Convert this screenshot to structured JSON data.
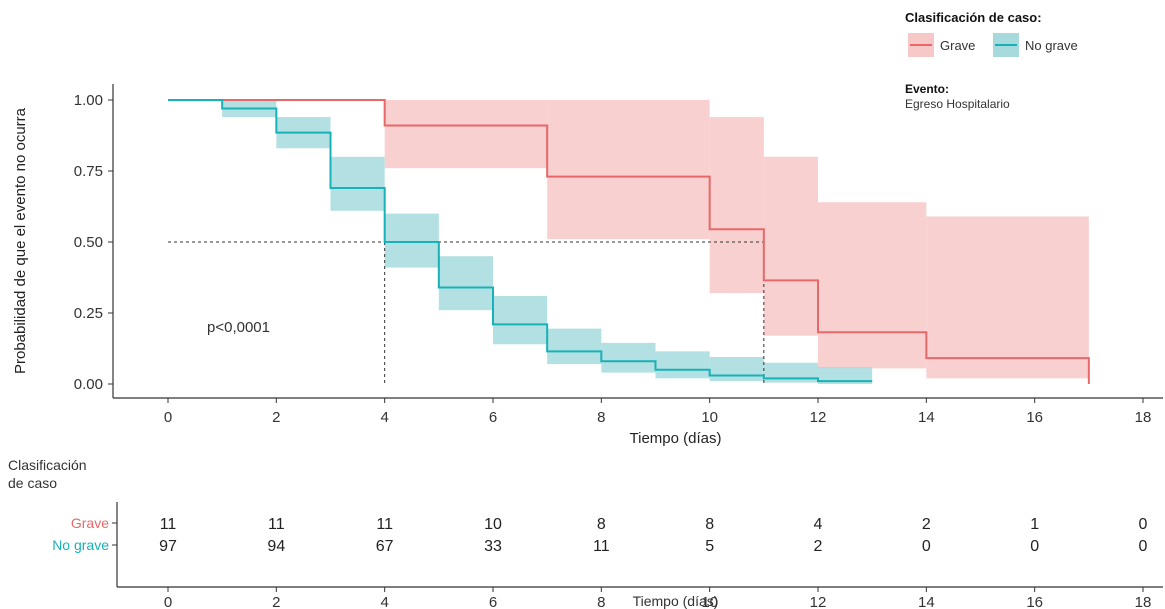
{
  "chart_data": {
    "type": "line",
    "subtype": "kaplan-meier",
    "title": "",
    "xlabel": "Tiempo (días)",
    "ylabel": "Probabilidad de que el evento no ocurra",
    "xlim": [
      0,
      18
    ],
    "ylim": [
      0,
      1
    ],
    "x_ticks": [
      "0",
      "2",
      "4",
      "6",
      "8",
      "10",
      "12",
      "14",
      "16",
      "18"
    ],
    "y_ticks": [
      "0.00",
      "0.25",
      "0.50",
      "0.75",
      "1.00"
    ],
    "grid": false,
    "pvalue_label": "p<0,0001",
    "median_line": {
      "y": 0.5,
      "medians": [
        4,
        11
      ]
    },
    "legend": {
      "title": "Clasificación de caso:",
      "position": "top-right",
      "items": [
        {
          "label": "Grave",
          "color": "#e8686a",
          "band_color": "#f7c8c8"
        },
        {
          "label": "No grave",
          "color": "#17b2b8",
          "band_color": "#a6dadd"
        }
      ]
    },
    "event_note": {
      "title": "Evento:",
      "value": "Egreso Hospitalario"
    },
    "series": [
      {
        "name": "Grave",
        "color": "#e8686a",
        "band_color": "#f7c8c8",
        "steps": [
          [
            0,
            1.0
          ],
          [
            4,
            0.91
          ],
          [
            7,
            0.73
          ],
          [
            10,
            0.545
          ],
          [
            11,
            0.365
          ],
          [
            12,
            0.182
          ],
          [
            14,
            0.091
          ],
          [
            17,
            0.0
          ]
        ],
        "band": [
          [
            4,
            0.76,
            1.0
          ],
          [
            7,
            0.51,
            1.0
          ],
          [
            10,
            0.32,
            0.94
          ],
          [
            11,
            0.17,
            0.8
          ],
          [
            12,
            0.055,
            0.64
          ],
          [
            14,
            0.02,
            0.59
          ],
          [
            17,
            0.0,
            0.0
          ]
        ]
      },
      {
        "name": "No grave",
        "color": "#17b2b8",
        "band_color": "#a6dadd",
        "steps": [
          [
            0,
            1.0
          ],
          [
            1,
            0.97
          ],
          [
            2,
            0.885
          ],
          [
            3,
            0.69
          ],
          [
            4,
            0.5
          ],
          [
            5,
            0.34
          ],
          [
            6,
            0.21
          ],
          [
            7,
            0.115
          ],
          [
            8,
            0.08
          ],
          [
            9,
            0.05
          ],
          [
            10,
            0.03
          ],
          [
            11,
            0.02
          ],
          [
            12,
            0.01
          ],
          [
            13,
            0.01
          ]
        ],
        "band": [
          [
            1,
            0.94,
            1.0
          ],
          [
            2,
            0.83,
            0.94
          ],
          [
            3,
            0.61,
            0.8
          ],
          [
            4,
            0.41,
            0.6
          ],
          [
            5,
            0.26,
            0.45
          ],
          [
            6,
            0.14,
            0.31
          ],
          [
            7,
            0.07,
            0.195
          ],
          [
            8,
            0.04,
            0.145
          ],
          [
            9,
            0.02,
            0.115
          ],
          [
            10,
            0.01,
            0.095
          ],
          [
            11,
            0.005,
            0.075
          ],
          [
            12,
            0.0,
            0.06
          ],
          [
            13,
            0.0,
            0.0
          ]
        ]
      }
    ],
    "risk_table": {
      "title": "Clasificación\nde caso",
      "xlabel": "Tiempo (días)",
      "times": [
        "0",
        "2",
        "4",
        "6",
        "8",
        "10",
        "12",
        "14",
        "16",
        "18"
      ],
      "rows": [
        {
          "label": "Grave",
          "color": "#e8686a",
          "values": [
            "11",
            "11",
            "11",
            "10",
            "8",
            "8",
            "4",
            "2",
            "1",
            "0"
          ]
        },
        {
          "label": "No grave",
          "color": "#17b2b8",
          "values": [
            "97",
            "94",
            "67",
            "33",
            "11",
            "5",
            "2",
            "0",
            "0",
            "0"
          ]
        }
      ]
    }
  }
}
